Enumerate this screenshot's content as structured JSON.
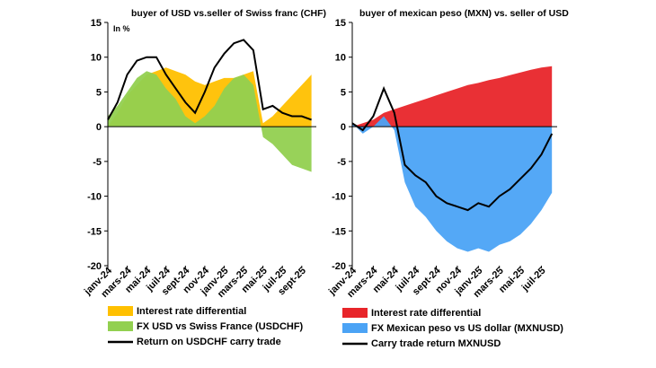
{
  "chart_data": [
    {
      "type": "area",
      "title": "buyer of USD vs.seller of Swiss franc (CHF)",
      "annotation": "In %",
      "ylim": [
        -20,
        15
      ],
      "yticks": [
        "15",
        "10",
        "5",
        "0",
        "-5",
        "-10",
        "-15",
        "-20"
      ],
      "categories": [
        "janv-24",
        "mars-24",
        "mai-24",
        "juil-24",
        "sept-24",
        "nov-24",
        "janv-25",
        "mars-25",
        "mai-25",
        "juil-25",
        "sept-25"
      ],
      "x": [
        0,
        2,
        4,
        6,
        8,
        10,
        12,
        14,
        16,
        18,
        20
      ],
      "series": [
        {
          "name": "Interest rate differential",
          "kind": "area",
          "color": "#FFC000",
          "points": [
            [
              0,
              0
            ],
            [
              1,
              2
            ],
            [
              2,
              4.5
            ],
            [
              3,
              6
            ],
            [
              4,
              7.5
            ],
            [
              5,
              8
            ],
            [
              6,
              8.5
            ],
            [
              7,
              8
            ],
            [
              8,
              7.5
            ],
            [
              9,
              6.5
            ],
            [
              10,
              6
            ],
            [
              11,
              6.5
            ],
            [
              12,
              7
            ],
            [
              13,
              7
            ],
            [
              14,
              7.5
            ],
            [
              15,
              8
            ],
            [
              16,
              0.5
            ],
            [
              17,
              1.5
            ],
            [
              18,
              3
            ],
            [
              19,
              4.5
            ],
            [
              20,
              6
            ],
            [
              21,
              7.5
            ]
          ]
        },
        {
          "name": "FX USD vs Swiss France (USDCHF)",
          "kind": "area",
          "color": "#92D050",
          "points": [
            [
              0,
              1.5
            ],
            [
              1,
              3
            ],
            [
              2,
              5
            ],
            [
              3,
              7
            ],
            [
              4,
              8
            ],
            [
              5,
              7.5
            ],
            [
              6,
              5.5
            ],
            [
              7,
              4
            ],
            [
              8,
              1.5
            ],
            [
              9,
              0.5
            ],
            [
              10,
              1.5
            ],
            [
              11,
              3
            ],
            [
              12,
              5.5
            ],
            [
              13,
              7
            ],
            [
              14,
              7.5
            ],
            [
              15,
              6
            ],
            [
              16,
              -1.5
            ],
            [
              17,
              -2.5
            ],
            [
              18,
              -4
            ],
            [
              19,
              -5.5
            ],
            [
              20,
              -6
            ],
            [
              21,
              -6.5
            ]
          ]
        },
        {
          "name": "Return on USDCHF carry trade",
          "kind": "line",
          "color": "#000000",
          "points": [
            [
              0,
              1
            ],
            [
              1,
              3.5
            ],
            [
              2,
              7.5
            ],
            [
              3,
              9.5
            ],
            [
              4,
              10
            ],
            [
              5,
              10
            ],
            [
              6,
              7.5
            ],
            [
              7,
              5.5
            ],
            [
              8,
              3.5
            ],
            [
              9,
              2
            ],
            [
              10,
              5
            ],
            [
              11,
              8.5
            ],
            [
              12,
              10.5
            ],
            [
              13,
              12
            ],
            [
              14,
              12.5
            ],
            [
              15,
              11
            ],
            [
              16,
              2.5
            ],
            [
              17,
              3
            ],
            [
              18,
              2
            ],
            [
              19,
              1.5
            ],
            [
              20,
              1.5
            ],
            [
              21,
              1
            ]
          ]
        }
      ]
    },
    {
      "type": "area",
      "title": "buyer of mexican peso (MXN) vs. seller of USD",
      "ylim": [
        -20,
        15
      ],
      "yticks": [
        "15",
        "10",
        "5",
        "0",
        "-5",
        "-10",
        "-15",
        "-20"
      ],
      "categories": [
        "janv-24",
        "mars-24",
        "mai-24",
        "juil-24",
        "sept-24",
        "nov-24",
        "janv-25",
        "mars-25",
        "mai-25",
        "juil-25"
      ],
      "x": [
        0,
        2,
        4,
        6,
        8,
        10,
        12,
        14,
        16,
        18
      ],
      "series": [
        {
          "name": "Interest rate differential",
          "kind": "area",
          "color": "#E8252A",
          "points": [
            [
              0,
              0
            ],
            [
              1,
              0.5
            ],
            [
              2,
              1
            ],
            [
              3,
              2
            ],
            [
              4,
              2.5
            ],
            [
              5,
              3
            ],
            [
              6,
              3.5
            ],
            [
              7,
              4
            ],
            [
              8,
              4.5
            ],
            [
              9,
              5
            ],
            [
              10,
              5.5
            ],
            [
              11,
              6
            ],
            [
              12,
              6.3
            ],
            [
              13,
              6.7
            ],
            [
              14,
              7
            ],
            [
              15,
              7.4
            ],
            [
              16,
              7.8
            ],
            [
              17,
              8.2
            ],
            [
              18,
              8.5
            ],
            [
              19,
              8.7
            ]
          ]
        },
        {
          "name": "FX Mexican peso vs US dollar (MXNUSD)",
          "kind": "area",
          "color": "#4BA3F5",
          "points": [
            [
              0,
              0.5
            ],
            [
              1,
              -1
            ],
            [
              2,
              0
            ],
            [
              3,
              1.5
            ],
            [
              4,
              -0.5
            ],
            [
              5,
              -8
            ],
            [
              6,
              -11.5
            ],
            [
              7,
              -13
            ],
            [
              8,
              -15
            ],
            [
              9,
              -16.5
            ],
            [
              10,
              -17.5
            ],
            [
              11,
              -18
            ],
            [
              12,
              -17.5
            ],
            [
              13,
              -18
            ],
            [
              14,
              -17
            ],
            [
              15,
              -16.5
            ],
            [
              16,
              -15.5
            ],
            [
              17,
              -14
            ],
            [
              18,
              -12
            ],
            [
              19,
              -9.5
            ]
          ]
        },
        {
          "name": "Carry trade return MXNUSD",
          "kind": "line",
          "color": "#000000",
          "points": [
            [
              0,
              0.5
            ],
            [
              1,
              -0.5
            ],
            [
              2,
              1.5
            ],
            [
              3,
              5.5
            ],
            [
              4,
              2
            ],
            [
              5,
              -5.5
            ],
            [
              6,
              -7
            ],
            [
              7,
              -8
            ],
            [
              8,
              -10
            ],
            [
              9,
              -11
            ],
            [
              10,
              -11.5
            ],
            [
              11,
              -12
            ],
            [
              12,
              -11
            ],
            [
              13,
              -11.5
            ],
            [
              14,
              -10
            ],
            [
              15,
              -9
            ],
            [
              16,
              -7.5
            ],
            [
              17,
              -6
            ],
            [
              18,
              -4
            ],
            [
              19,
              -1
            ]
          ]
        }
      ]
    }
  ]
}
